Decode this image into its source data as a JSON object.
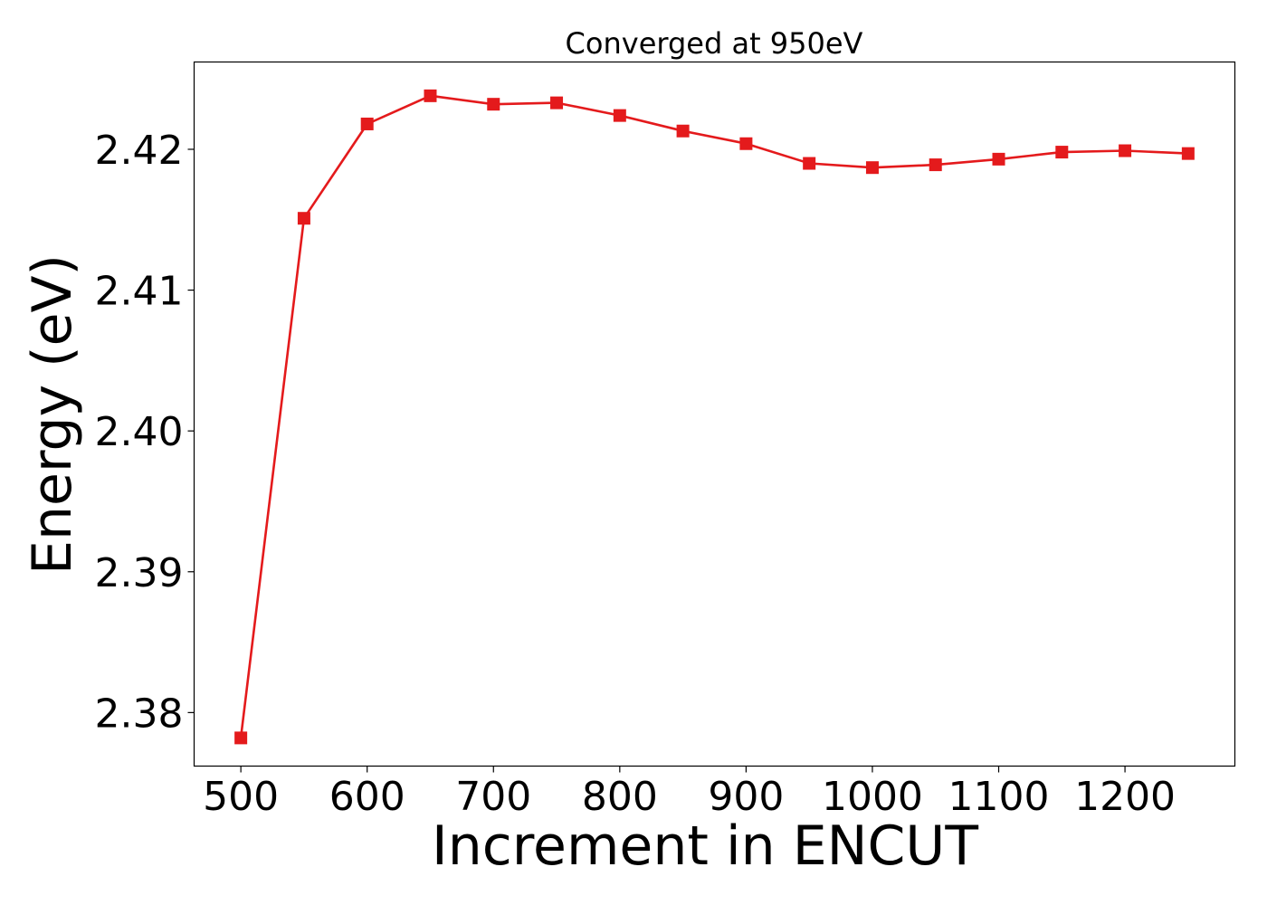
{
  "chart_data": {
    "type": "line",
    "title": "Converged at 950eV",
    "xlabel": "Increment in ENCUT",
    "ylabel": "Energy (eV)",
    "xlim": [
      463,
      1287
    ],
    "ylim": [
      2.3762,
      2.4262
    ],
    "xticks": [
      500,
      600,
      700,
      800,
      900,
      1000,
      1100,
      1200
    ],
    "xtick_labels": [
      "500",
      "600",
      "700",
      "800",
      "900",
      "1000",
      "1100",
      "1200"
    ],
    "yticks": [
      2.38,
      2.39,
      2.4,
      2.41,
      2.42
    ],
    "ytick_labels": [
      "2.38",
      "2.39",
      "2.40",
      "2.41",
      "2.42"
    ],
    "grid": false,
    "series": [
      {
        "color": "#e41a1c",
        "marker": "square",
        "x": [
          500,
          550,
          600,
          650,
          700,
          750,
          800,
          850,
          900,
          950,
          1000,
          1050,
          1100,
          1150,
          1200,
          1250
        ],
        "y": [
          2.3782,
          2.4151,
          2.4218,
          2.4238,
          2.4232,
          2.4233,
          2.4224,
          2.4213,
          2.4204,
          2.419,
          2.4187,
          2.4189,
          2.4193,
          2.4198,
          2.4199,
          2.4197
        ]
      }
    ]
  }
}
